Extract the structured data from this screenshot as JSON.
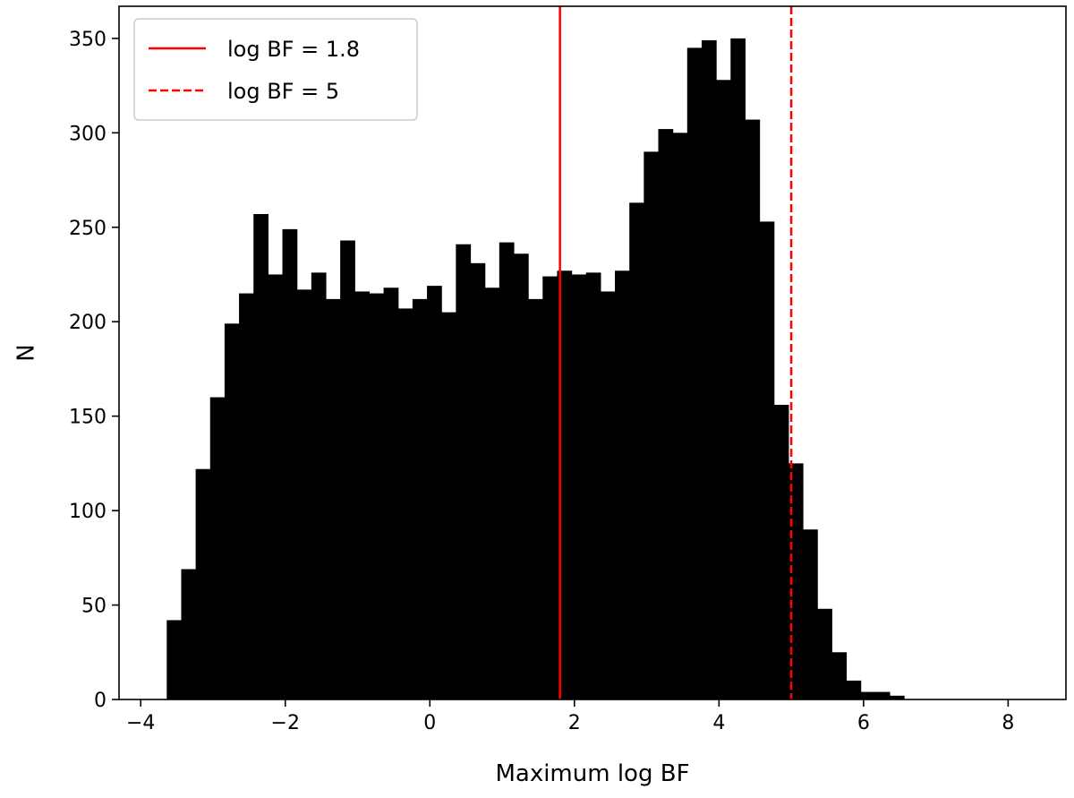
{
  "chart_data": {
    "type": "histogram",
    "xlabel": "Maximum log BF",
    "ylabel": "N",
    "xlim": [
      -4.3,
      8.8
    ],
    "ylim": [
      0,
      367
    ],
    "xticks": [
      -4,
      -2,
      0,
      2,
      4,
      6,
      8
    ],
    "xtick_labels": [
      "−4",
      "−2",
      "0",
      "2",
      "4",
      "6",
      "8"
    ],
    "yticks": [
      0,
      50,
      100,
      150,
      200,
      250,
      300,
      350
    ],
    "ytick_labels": [
      "0",
      "50",
      "100",
      "150",
      "200",
      "250",
      "300",
      "350"
    ],
    "bin_start": -3.64,
    "bin_width": 0.2,
    "bar_color": "#000000",
    "counts": [
      42,
      69,
      122,
      160,
      199,
      215,
      257,
      225,
      249,
      217,
      226,
      212,
      243,
      216,
      215,
      218,
      207,
      212,
      219,
      205,
      241,
      231,
      218,
      242,
      236,
      212,
      224,
      227,
      225,
      226,
      216,
      227,
      263,
      290,
      302,
      300,
      345,
      349,
      328,
      350,
      307,
      253,
      156,
      125,
      90,
      48,
      25,
      10,
      4,
      4,
      2
    ],
    "vlines": [
      {
        "x": 1.8,
        "style": "solid",
        "color": "#ff0000",
        "label": "log BF = 1.8"
      },
      {
        "x": 5,
        "style": "dashed",
        "color": "#ff0000",
        "label": "log BF = 5"
      }
    ],
    "legend_placement": "top-left",
    "grid": false
  }
}
